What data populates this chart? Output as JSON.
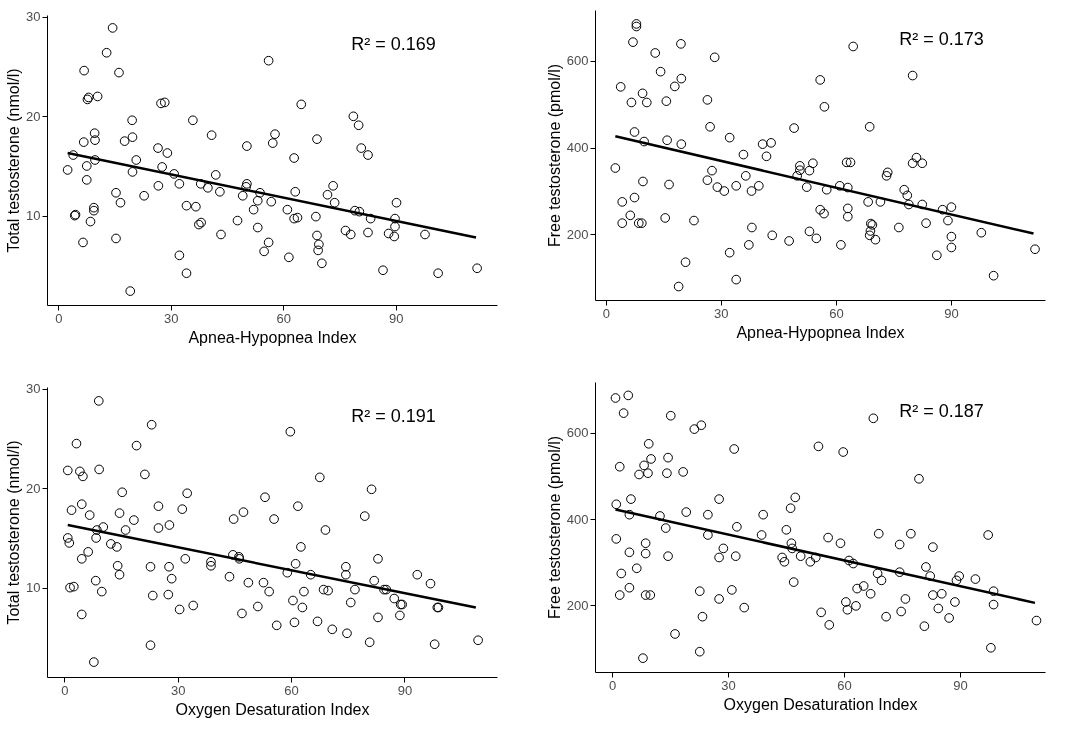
{
  "chart_data": [
    {
      "type": "scatter",
      "xlabel": "Apnea-Hypopnea Index",
      "ylabel": "Total testosterone (nmol/l)",
      "annotations": [
        "R² = 0.169"
      ],
      "marker": "circle",
      "xlim": [
        -3,
        117
      ],
      "ylim": [
        1,
        30.2
      ],
      "xticks": [
        0,
        30,
        60,
        90
      ],
      "yticks": [
        10,
        20,
        30
      ],
      "series": [
        {
          "color": "#000000",
          "x": [
            2.5,
            4.0,
            4.4,
            4.6,
            6.9,
            6.6,
            6.8,
            7.6,
            7.6,
            7.8,
            8.1,
            8.6,
            9.5,
            9.5,
            9.7,
            9.8,
            9.8,
            10.5,
            12.9,
            14.5,
            15.4,
            15.4,
            16.2,
            16.6,
            17.7,
            19.2,
            19.7,
            19.8,
            19.8,
            20.8,
            22.9,
            26.6,
            26.7,
            27.4,
            28.4,
            27.7,
            29.1,
            30.9,
            32.3,
            32.3,
            34.2,
            34.2,
            35.9,
            36.7,
            37.5,
            38.1,
            38.0,
            39.9,
            40.9,
            42.0,
            43.1,
            43.4,
            47.8,
            49.2,
            50.1,
            50.3,
            50.3,
            52.1,
            53.2,
            53.2,
            53.8,
            54.9,
            56.1,
            56.1,
            56.8,
            57.2,
            57.8,
            61.1,
            61.5,
            62.9,
            63.2,
            62.9,
            63.8,
            64.8,
            68.7,
            69.0,
            69.0,
            69.5,
            69.3,
            70.3,
            71.8,
            73.3,
            73.7,
            76.6,
            78.0,
            78.7,
            79.1,
            80.3,
            80.1,
            80.8,
            82.6,
            82.6,
            83.3,
            86.6,
            88.1,
            89.6,
            89.8,
            89.8,
            90.2,
            97.8,
            101.3,
            111.7
          ],
          "values": [
            14.6,
            16.1,
            10.0,
            10.1,
            24.6,
            7.3,
            17.4,
            15.0,
            13.6,
            21.7,
            21.9,
            9.4,
            10.8,
            10.5,
            18.3,
            17.6,
            15.6,
            22.0,
            26.4,
            28.9,
            12.3,
            7.7,
            24.4,
            11.3,
            17.5,
            2.4,
            19.6,
            17.9,
            14.4,
            15.6,
            12.0,
            16.8,
            13.0,
            21.3,
            21.4,
            14.9,
            16.3,
            14.2,
            13.2,
            6.0,
            11.0,
            4.2,
            19.6,
            10.9,
            9.1,
            9.3,
            13.2,
            12.8,
            18.1,
            14.1,
            12.4,
            8.1,
            9.5,
            12.0,
            12.9,
            13.2,
            17.0,
            10.6,
            11.5,
            8.8,
            12.3,
            6.4,
            25.6,
            7.3,
            11.4,
            17.3,
            18.2,
            10.6,
            5.8,
            15.8,
            12.4,
            9.7,
            9.8,
            21.2,
            9.9,
            8.0,
            17.7,
            7.1,
            6.5,
            5.2,
            12.1,
            13.0,
            11.3,
            8.5,
            8.1,
            20.0,
            10.5,
            10.4,
            19.1,
            16.8,
            16.1,
            8.3,
            9.7,
            4.5,
            8.2,
            7.9,
            8.9,
            9.7,
            11.3,
            8.1,
            4.2,
            4.7
          ]
        },
        {
          "type": "line",
          "marker": "none",
          "color": "#000000",
          "x": [
            2.5,
            111.4
          ],
          "values": [
            16.3,
            7.8
          ]
        }
      ]
    },
    {
      "type": "scatter",
      "xlabel": "Apnea-Hypopnea Index",
      "ylabel": "Free testosterone (pmol/l)",
      "annotations": [
        "R² = 0.173"
      ],
      "marker": "circle",
      "xlim": [
        -2.8,
        114.5
      ],
      "ylim": [
        49,
        717
      ],
      "xticks": [
        0,
        30,
        60,
        90
      ],
      "yticks": [
        200,
        400,
        600
      ],
      "series": [
        {
          "color": "#000000",
          "x": [
            2.5,
            3.9,
            4.3,
            4.3,
            6.4,
            6.7,
            7.1,
            7.5,
            7.5,
            8.0,
            8.0,
            8.6,
            9.4,
            9.6,
            9.7,
            10.0,
            10.7,
            12.9,
            14.3,
            15.5,
            15.8,
            16.0,
            16.5,
            18.0,
            19.0,
            19.6,
            19.7,
            19.7,
            20.8,
            23.0,
            26.5,
            26.5,
            27.2,
            27.7,
            28.4,
            29.1,
            30.9,
            32.3,
            32.3,
            34.0,
            34.0,
            35.9,
            36.5,
            37.3,
            38.0,
            38.1,
            39.9,
            40.9,
            41.9,
            43.1,
            43.4,
            47.8,
            49.1,
            49.9,
            50.6,
            50.6,
            52.4,
            53.1,
            53.1,
            54.0,
            54.9,
            55.9,
            55.9,
            56.9,
            57.0,
            57.6,
            61.0,
            61.3,
            62.8,
            63.8,
            63.1,
            63.1,
            63.1,
            64.5,
            68.4,
            68.8,
            68.8,
            69.0,
            69.1,
            69.5,
            70.3,
            71.6,
            73.2,
            73.5,
            76.4,
            77.8,
            78.6,
            79.0,
            80.0,
            80.0,
            81.0,
            82.5,
            82.5,
            83.5,
            86.3,
            87.8,
            89.2,
            90.1,
            90.1,
            90.1,
            97.9,
            101.1,
            111.9
          ],
          "values": [
            353,
            540,
            275,
            226,
            244,
            504,
            643,
            285,
            436,
            685,
            679,
            226,
            226,
            525,
            322,
            414,
            504,
            618,
            575,
            238,
            507,
            417,
            315,
            541,
            80,
            639,
            559,
            408,
            136,
            232,
            510,
            325,
            448,
            347,
            608,
            309,
            300,
            158,
            423,
            312,
            96,
            384,
            335,
            176,
            300,
            216,
            312,
            408,
            380,
            411,
            198,
            185,
            445,
            335,
            358,
            348,
            309,
            347,
            207,
            364,
            191,
            556,
            257,
            248,
            494,
            303,
            312,
            176,
            366,
            366,
            308,
            260,
            241,
            633,
            275,
            448,
            198,
            208,
            225,
            222,
            188,
            275,
            335,
            343,
            216,
            303,
            290,
            269,
            566,
            364,
            377,
            364,
            269,
            226,
            152,
            257,
            232,
            263,
            195,
            170,
            204,
            105,
            166
          ]
        },
        {
          "type": "line",
          "marker": "none",
          "color": "#000000",
          "x": [
            2.5,
            111.5
          ],
          "values": [
            426,
            202
          ]
        }
      ]
    },
    {
      "type": "scatter",
      "xlabel": "Oxygen Desaturation Index",
      "ylabel": "Total testosterone (nmol/l)",
      "annotations": [
        "R² = 0.191"
      ],
      "marker": "circle",
      "xlim": [
        -4.6,
        114.5
      ],
      "ylim": [
        1,
        30.2
      ],
      "xticks": [
        0,
        30,
        60,
        90
      ],
      "yticks": [
        10,
        20,
        30
      ],
      "series": [
        {
          "color": "#000000",
          "x": [
            0.9,
            0.9,
            1.3,
            1.5,
            2.5,
            1.9,
            3.2,
            4.1,
            4.6,
            4.6,
            4.6,
            4.9,
            6.3,
            6.7,
            7.8,
            8.3,
            8.4,
            8.6,
            9.1,
            9.2,
            9.9,
            10.3,
            12.3,
            13.9,
            14.1,
            14.6,
            14.6,
            15.3,
            16.2,
            18.4,
            19.1,
            21.3,
            22.8,
            22.8,
            23.1,
            23.4,
            24.9,
            24.9,
            27.5,
            27.7,
            27.8,
            28.4,
            30.5,
            31.2,
            32.0,
            32.5,
            34.1,
            38.8,
            38.8,
            43.7,
            44.8,
            44.6,
            46.2,
            46.3,
            47.0,
            47.4,
            48.7,
            51.2,
            52.7,
            53.1,
            54.2,
            55.5,
            56.2,
            59.0,
            59.8,
            60.5,
            60.9,
            61.2,
            61.8,
            62.6,
            63.0,
            63.4,
            65.2,
            67.0,
            67.6,
            68.6,
            69.8,
            69.1,
            70.9,
            74.5,
            74.5,
            74.8,
            75.8,
            76.9,
            79.5,
            80.8,
            81.3,
            82.0,
            83.0,
            83.0,
            84.6,
            85.2,
            87.3,
            88.8,
            89.0,
            89.4,
            93.4,
            96.9,
            98.0,
            98.7,
            99.0,
            109.5
          ],
          "values": [
            21.8,
            15.0,
            14.5,
            10.0,
            10.1,
            17.8,
            24.5,
            21.7,
            18.4,
            12.9,
            7.3,
            21.2,
            13.6,
            17.3,
            2.5,
            10.7,
            15.0,
            15.8,
            28.8,
            21.9,
            9.6,
            16.1,
            14.4,
            14.1,
            12.2,
            17.5,
            11.3,
            19.6,
            15.8,
            16.8,
            24.3,
            21.4,
            12.1,
            4.2,
            26.4,
            9.2,
            18.2,
            16.0,
            9.3,
            12.1,
            16.3,
            10.9,
            7.8,
            17.9,
            12.9,
            19.5,
            8.2,
            12.6,
            12.2,
            11.1,
            16.9,
            13.3,
            13.1,
            12.9,
            7.4,
            17.6,
            10.5,
            8.1,
            10.5,
            19.1,
            9.6,
            16.9,
            6.2,
            11.5,
            25.7,
            8.7,
            6.5,
            12.4,
            18.2,
            14.1,
            8.0,
            9.6,
            11.3,
            6.6,
            21.1,
            9.8,
            9.7,
            15.8,
            5.8,
            12.1,
            11.3,
            5.4,
            8.5,
            9.8,
            17.2,
            4.5,
            19.9,
            10.7,
            12.9,
            7.0,
            9.8,
            9.8,
            8.9,
            7.2,
            8.3,
            8.3,
            11.3,
            10.4,
            4.3,
            8.0,
            8.0,
            4.7
          ]
        },
        {
          "type": "line",
          "marker": "none",
          "color": "#000000",
          "x": [
            0.9,
            108.9
          ],
          "values": [
            16.3,
            8.0
          ]
        }
      ]
    },
    {
      "type": "scatter",
      "xlabel": "Oxygen Desaturation Index",
      "ylabel": "Free testosterone (pmol/l)",
      "annotations": [
        "R² = 0.187"
      ],
      "marker": "circle",
      "xlim": [
        -4.4,
        112
      ],
      "ylim": [
        46,
        717
      ],
      "xticks": [
        0,
        30,
        60,
        90
      ],
      "yticks": [
        200,
        400,
        600
      ],
      "series": [
        {
          "color": "#000000",
          "x": [
            0.9,
            4.2,
            3.0,
            1.1,
            1.1,
            2.0,
            2.0,
            2.4,
            4.5,
            4.5,
            4.9,
            4.5,
            6.4,
            7.0,
            8.0,
            8.3,
            8.7,
            8.7,
            8.7,
            9.9,
            9.3,
            9.5,
            10.1,
            12.4,
            13.9,
            14.2,
            14.5,
            14.5,
            15.2,
            16.3,
            18.4,
            19.2,
            21.3,
            22.7,
            22.7,
            23.1,
            23.4,
            24.8,
            24.8,
            27.7,
            27.7,
            27.7,
            28.8,
            31.0,
            31.6,
            32.0,
            32.3,
            34.2,
            38.7,
            39.1,
            44.0,
            44.6,
            45.1,
            46.2,
            46.4,
            46.6,
            47.0,
            47.4,
            48.8,
            51.3,
            52.7,
            53.4,
            54.1,
            55.9,
            56.2,
            59.1,
            59.8,
            60.5,
            60.9,
            61.3,
            62.4,
            63.1,
            63.4,
            65.1,
            66.9,
            67.6,
            68.7,
            69.0,
            69.7,
            70.9,
            74.4,
            74.4,
            74.8,
            75.9,
            77.3,
            79.4,
            80.8,
            81.2,
            82.3,
            83.0,
            83.0,
            84.4,
            85.3,
            87.2,
            88.7,
            89.1,
            89.8,
            94.0,
            97.3,
            98.0,
            98.7,
            98.7,
            109.8
          ],
          "values": [
            680,
            686,
            645,
            434,
            354,
            521,
            224,
            274,
            323,
            241,
            446,
            410,
            286,
            503,
            78,
            524,
            344,
            320,
            224,
            224,
            506,
            574,
            539,
            407,
            379,
            506,
            542,
            314,
            639,
            134,
            509,
            416,
            608,
            93,
            233,
            617,
            174,
            410,
            363,
            311,
            215,
            446,
            332,
            236,
            562,
            314,
            382,
            195,
            363,
            410,
            311,
            301,
            375,
            425,
            344,
            332,
            254,
            450,
            314,
            301,
            311,
            568,
            184,
            357,
            155,
            344,
            555,
            208,
            190,
            304,
            297,
            199,
            239,
            245,
            227,
            633,
            274,
            366,
            258,
            174,
            341,
            277,
            186,
            215,
            366,
            493,
            152,
            289,
            268,
            224,
            335,
            193,
            227,
            171,
            208,
            258,
            268,
            261,
            363,
            102,
            233,
            202,
            165
          ]
        },
        {
          "type": "line",
          "marker": "none",
          "color": "#000000",
          "x": [
            0.9,
            109.4
          ],
          "values": [
            422,
            206
          ]
        }
      ]
    }
  ]
}
